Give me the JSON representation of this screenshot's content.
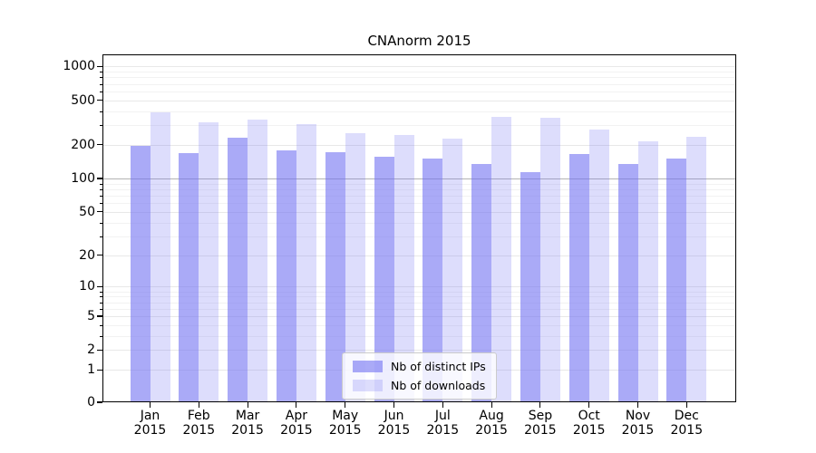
{
  "chart_data": {
    "type": "bar",
    "title": "CNAnorm 2015",
    "months": [
      "Jan",
      "Feb",
      "Mar",
      "Apr",
      "May",
      "Jun",
      "Jul",
      "Aug",
      "Sep",
      "Oct",
      "Nov",
      "Dec"
    ],
    "year_label": "2015",
    "series": [
      {
        "name": "Nb of distinct IPs",
        "color": "rgba(113,113,242,0.60)",
        "values": [
          195,
          170,
          230,
          178,
          173,
          156,
          151,
          136,
          115,
          166,
          135,
          150
        ]
      },
      {
        "name": "Nb of downloads",
        "color": "rgba(113,113,242,0.24)",
        "values": [
          388,
          316,
          335,
          308,
          256,
          245,
          229,
          356,
          349,
          276,
          215,
          236
        ]
      }
    ],
    "y_ticks": [
      0,
      1,
      2,
      5,
      10,
      20,
      50,
      100,
      200,
      500,
      1000
    ],
    "y_minor_gridlines": [
      3,
      4,
      6,
      7,
      8,
      9,
      30,
      40,
      60,
      70,
      80,
      90,
      300,
      400,
      600,
      700,
      800,
      900
    ],
    "y_scale": "log10(1+x)",
    "ylim": [
      0,
      1280
    ],
    "emphasized_gridline": 100,
    "grid": true,
    "legend": {
      "position": "lower center",
      "entries": [
        "Nb of distinct IPs",
        "Nb of downloads"
      ]
    }
  },
  "colors": {
    "bar_distinct_ips": "#a9a9f7",
    "bar_downloads": "#dcdcfa",
    "grid_major": "#e8e8e8",
    "grid_minor": "#f2f2f2",
    "grid_emphasis": "#b3b3b3",
    "axis": "#000000",
    "background": "#ffffff"
  }
}
